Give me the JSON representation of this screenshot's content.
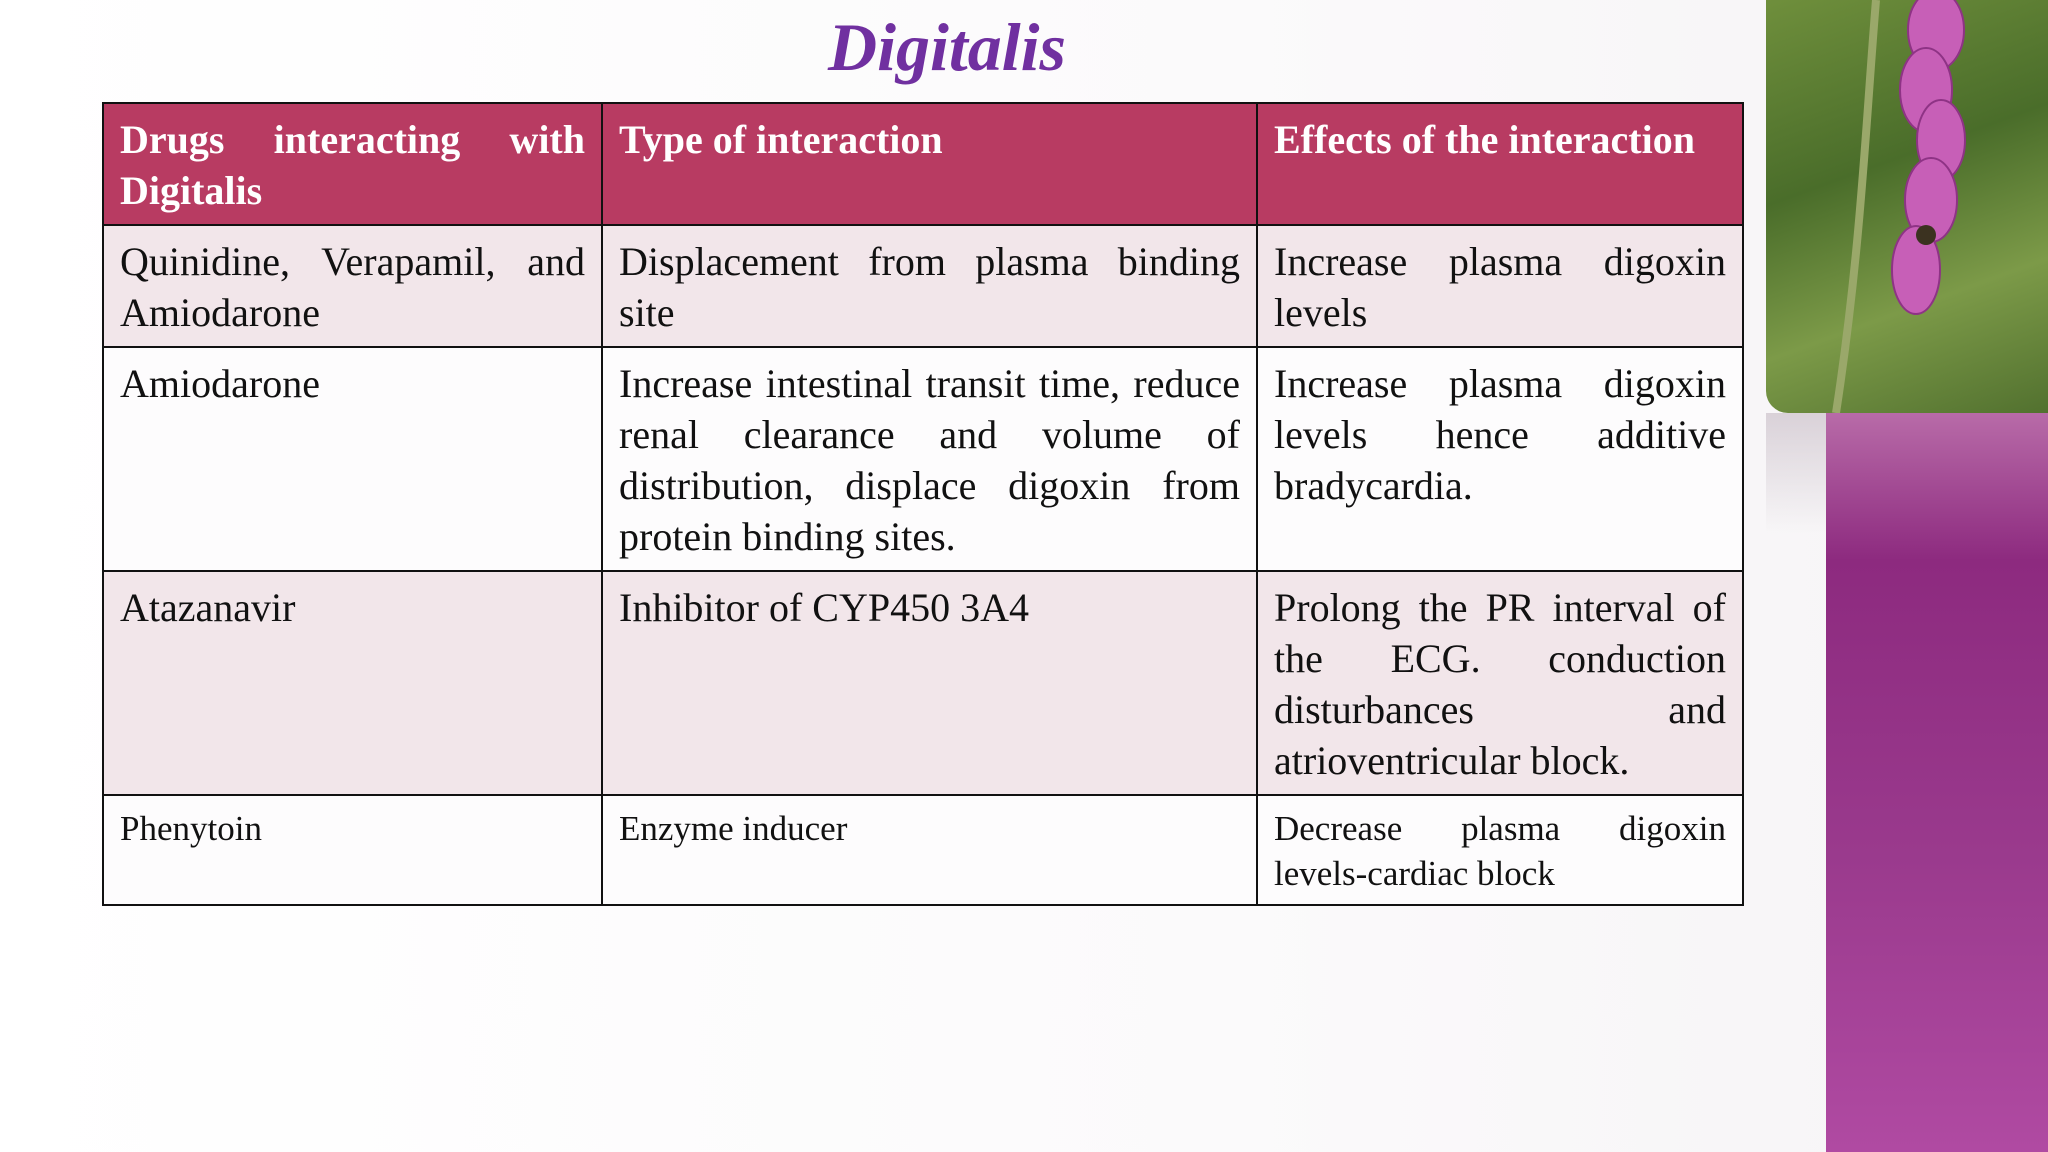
{
  "title": "Digitalis",
  "table": {
    "header": [
      "Drugs interacting with Digitalis",
      "Type of interaction",
      "Effects of the interaction"
    ],
    "rows": [
      [
        "Quinidine, Verapamil, and Amiodarone",
        "Displacement from plasma binding site",
        "Increase plasma digoxin levels"
      ],
      [
        "Amiodarone",
        "Increase intestinal transit time, reduce renal clearance and volume of distribution, displace digoxin from protein binding sites.",
        "Increase plasma digoxin levels hence additive bradycardia."
      ],
      [
        "Atazanavir",
        "Inhibitor of CYP450 3A4",
        "Prolong the PR interval of the ECG. conduction disturbances and atrioventricular block."
      ],
      [
        "Phenytoin",
        "Enzyme inducer",
        "Decrease plasma digoxin levels-cardiac block"
      ]
    ]
  }
}
